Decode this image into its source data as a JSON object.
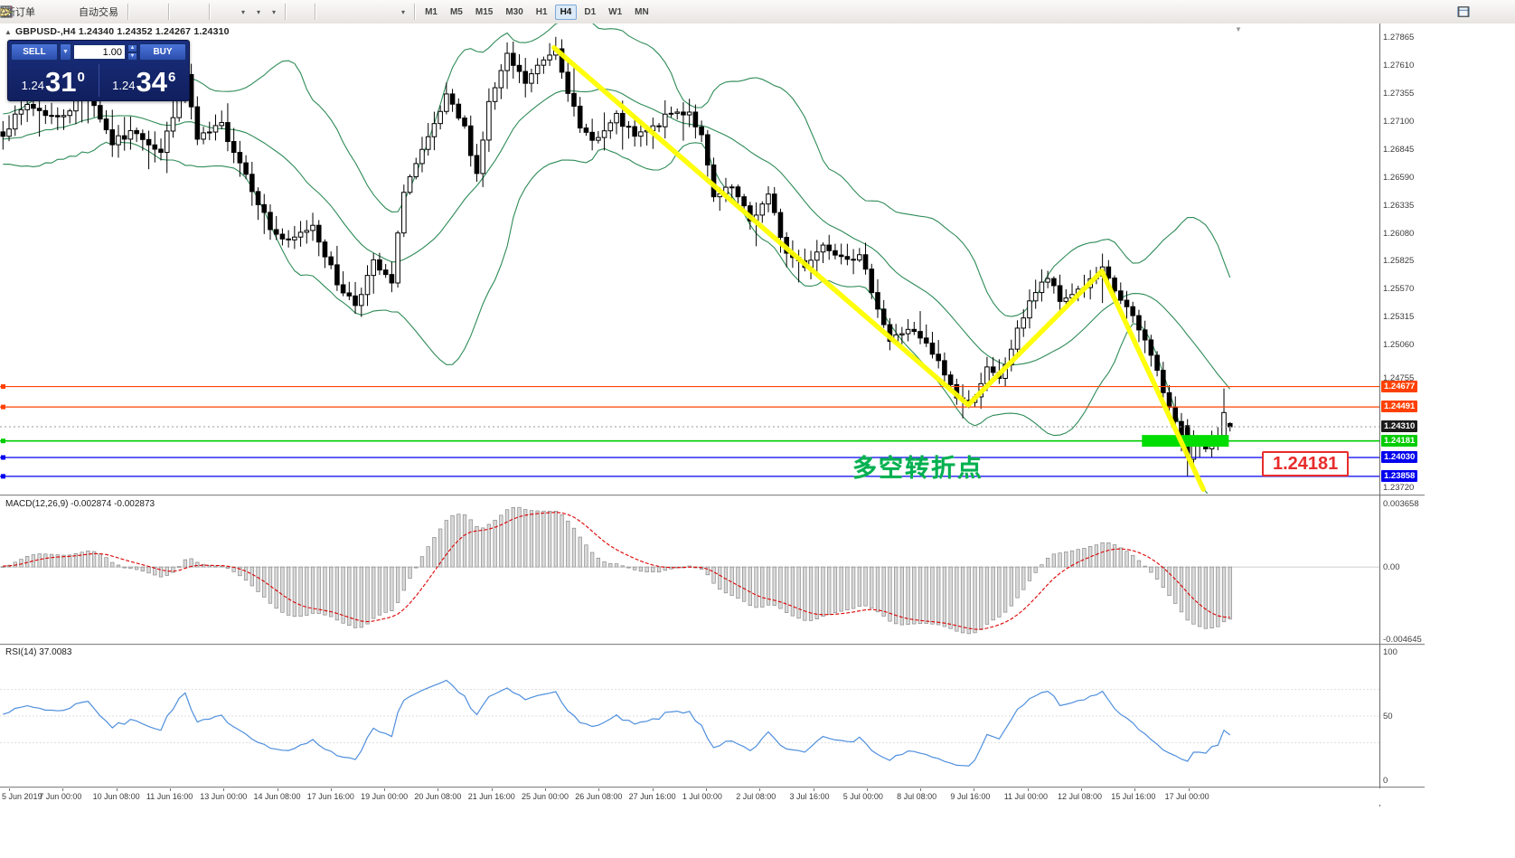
{
  "toolbar": {
    "new_order_label": "新订单",
    "autotrade_label": "自动交易",
    "timeframes": [
      "M1",
      "M5",
      "M15",
      "M30",
      "H1",
      "H4",
      "D1",
      "W1",
      "MN"
    ],
    "active_timeframe": "H4"
  },
  "chart": {
    "symbol": "GBPUSD-,H4",
    "quote_open": "1.24340",
    "quote_high": "1.24352",
    "quote_low": "1.24267",
    "quote_close": "1.24310",
    "trade_panel": {
      "sell_label": "SELL",
      "buy_label": "BUY",
      "volume": "1.00",
      "sell_price_small": "1.24",
      "sell_price_big": "31",
      "sell_price_sup": "0",
      "buy_price_small": "1.24",
      "buy_price_big": "34",
      "buy_price_sup": "6"
    },
    "annotation": {
      "text": "多空转折点",
      "price_label": "1.24181"
    }
  },
  "chart_data": {
    "type": "candlestick",
    "symbol": "GBPUSD",
    "timeframe": "H4",
    "bars": 203,
    "price_range": {
      "top": 1.2799,
      "bottom": 1.237
    },
    "axis_gridline_labels": [
      {
        "price": 1.27865,
        "label": "1.27865"
      },
      {
        "price": 1.2761,
        "label": "1.27610"
      },
      {
        "price": 1.27355,
        "label": "1.27355"
      },
      {
        "price": 1.271,
        "label": "1.27100"
      },
      {
        "price": 1.26845,
        "label": "1.26845"
      },
      {
        "price": 1.2659,
        "label": "1.26590"
      },
      {
        "price": 1.26335,
        "label": "1.26335"
      },
      {
        "price": 1.2608,
        "label": "1.26080"
      },
      {
        "price": 1.25825,
        "label": "1.25825"
      },
      {
        "price": 1.2557,
        "label": "1.25570"
      },
      {
        "price": 1.25315,
        "label": "1.25315"
      },
      {
        "price": 1.2506,
        "label": "1.25060"
      },
      {
        "price": 1.24755,
        "label": "1.24755"
      },
      {
        "price": 1.2372,
        "label": "1.23720"
      }
    ],
    "price_keyframes": [
      [
        0,
        1.27
      ],
      [
        4,
        1.2725
      ],
      [
        9,
        1.2712
      ],
      [
        14,
        1.2737
      ],
      [
        18,
        1.269
      ],
      [
        22,
        1.2701
      ],
      [
        26,
        1.2681
      ],
      [
        30,
        1.2752
      ],
      [
        32,
        1.2692
      ],
      [
        36,
        1.2706
      ],
      [
        40,
        1.2662
      ],
      [
        44,
        1.2612
      ],
      [
        47,
        1.2598
      ],
      [
        51,
        1.2616
      ],
      [
        55,
        1.2562
      ],
      [
        58,
        1.2543
      ],
      [
        61,
        1.258
      ],
      [
        64,
        1.2561
      ],
      [
        66,
        1.2648
      ],
      [
        70,
        1.2692
      ],
      [
        73,
        1.2731
      ],
      [
        76,
        1.2703
      ],
      [
        78,
        1.2662
      ],
      [
        80,
        1.2726
      ],
      [
        83,
        1.2768
      ],
      [
        86,
        1.2745
      ],
      [
        88,
        1.2759
      ],
      [
        91,
        1.2778
      ],
      [
        93,
        1.2739
      ],
      [
        95,
        1.2701
      ],
      [
        98,
        1.2694
      ],
      [
        101,
        1.2713
      ],
      [
        104,
        1.2695
      ],
      [
        107,
        1.2703
      ],
      [
        110,
        1.2717
      ],
      [
        113,
        1.2719
      ],
      [
        115,
        1.2695
      ],
      [
        117,
        1.2639
      ],
      [
        120,
        1.2649
      ],
      [
        123,
        1.2619
      ],
      [
        126,
        1.2641
      ],
      [
        129,
        1.2589
      ],
      [
        132,
        1.2579
      ],
      [
        135,
        1.2597
      ],
      [
        138,
        1.2589
      ],
      [
        141,
        1.2585
      ],
      [
        143,
        1.2557
      ],
      [
        146,
        1.2509
      ],
      [
        149,
        1.2521
      ],
      [
        152,
        1.2505
      ],
      [
        154,
        1.2489
      ],
      [
        157,
        1.2459
      ],
      [
        159,
        1.2451
      ],
      [
        162,
        1.2483
      ],
      [
        164,
        1.2473
      ],
      [
        166,
        1.2503
      ],
      [
        169,
        1.2547
      ],
      [
        172,
        1.2567
      ],
      [
        174,
        1.2545
      ],
      [
        176,
        1.2553
      ],
      [
        179,
        1.2563
      ],
      [
        181,
        1.2573
      ],
      [
        183,
        1.2555
      ],
      [
        185,
        1.2539
      ],
      [
        187,
        1.2519
      ],
      [
        189,
        1.2499
      ],
      [
        191,
        1.2463
      ],
      [
        193,
        1.2433
      ],
      [
        195,
        1.2403
      ],
      [
        196,
        1.2419
      ],
      [
        198,
        1.2409
      ],
      [
        200,
        1.2423
      ],
      [
        201,
        1.2444
      ],
      [
        202,
        1.2431
      ]
    ],
    "override_bars": {
      "195": [
        1.2432,
        1.2438,
        1.2386,
        1.2403
      ],
      "201": [
        1.2423,
        1.2466,
        1.2419,
        1.2444
      ],
      "202": [
        1.2434,
        1.24352,
        1.24267,
        1.2431
      ]
    },
    "seed": 7,
    "bollinger": {
      "period": 20,
      "deviation": 2,
      "color": "#2e8b57"
    },
    "trendlines": {
      "color": "#ffff00",
      "vertices": [
        [
          90.7,
          1.2777
        ],
        [
          158.9,
          1.2451
        ],
        [
          180.9,
          1.2573
        ],
        [
          197.6,
          1.2374
        ]
      ]
    },
    "hlines": [
      {
        "price": 1.24677,
        "color": "#ff4000",
        "label": "1.24677"
      },
      {
        "price": 1.24491,
        "color": "#ff4000",
        "label": "1.24491"
      },
      {
        "price": 1.24181,
        "color": "#00cc00",
        "label": "1.24181"
      },
      {
        "price": 1.2403,
        "color": "#0000ee",
        "label": "1.24030"
      },
      {
        "price": 1.23858,
        "color": "#0000ee",
        "label": "1.23858"
      }
    ],
    "current_price": {
      "value": 1.2431,
      "label": "1.24310",
      "chip_bg": "#1a1a1a"
    },
    "zone": {
      "bar_start": 187.5,
      "bar_end": 201.8,
      "price_top": 1.24235,
      "price_bottom": 1.24128,
      "color": "#00dd00"
    },
    "macd": {
      "name_label": "MACD(12,26,9)",
      "value_main": "-0.002874",
      "value_signal": "-0.002873",
      "fast": 12,
      "slow": 26,
      "signal": 9,
      "scale_top_label": "0.003658",
      "scale_zero_label": "0.00",
      "scale_bottom_label": "-0.004645",
      "histogram_color": "#d9d9d9",
      "histogram_border": "#8a8a8a",
      "signal_color": "#dd0000"
    },
    "rsi": {
      "name_label": "RSI(14)",
      "value": "37.0083",
      "period": 14,
      "scale_labels": [
        "100",
        "50",
        "0"
      ],
      "line_color": "#4f8fdd"
    },
    "time_labels": [
      "5 Jun 2019",
      "7 Jun 00:00",
      "10 Jun 08:00",
      "11 Jun 16:00",
      "13 Jun 00:00",
      "14 Jun 08:00",
      "17 Jun 16:00",
      "19 Jun 00:00",
      "20 Jun 08:00",
      "21 Jun 16:00",
      "25 Jun 00:00",
      "26 Jun 08:00",
      "27 Jun 16:00",
      "1 Jul 00:00",
      "2 Jul 08:00",
      "3 Jul 16:00",
      "5 Jul 00:00",
      "8 Jul 08:00",
      "9 Jul 16:00",
      "11 Jul 00:00",
      "12 Jul 08:00",
      "15 Jul 16:00",
      "17 Jul 00:00"
    ]
  }
}
